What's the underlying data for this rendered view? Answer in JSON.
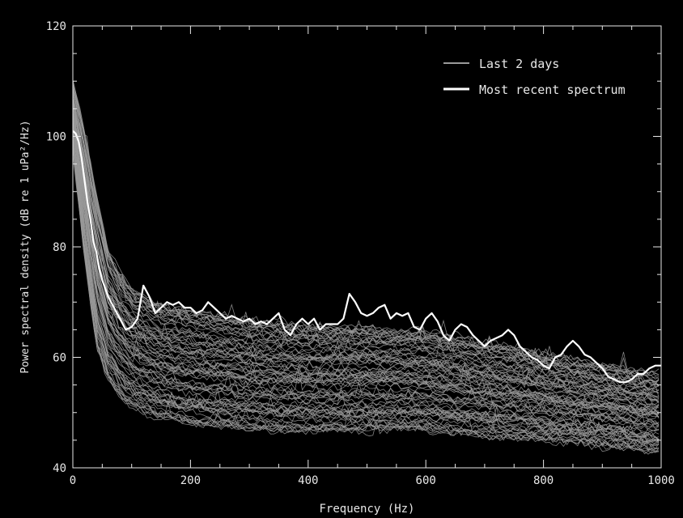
{
  "chart_data": {
    "type": "line",
    "xlabel": "Frequency (Hz)",
    "ylabel": "Power spectral density (dB re 1 uPa²/Hz)",
    "xlim": [
      0,
      1000
    ],
    "ylim": [
      40,
      120
    ],
    "x_ticks": [
      0,
      200,
      400,
      600,
      800,
      1000
    ],
    "y_ticks": [
      40,
      60,
      80,
      100,
      120
    ],
    "x_tick_labels": [
      "0",
      "200",
      "400",
      "600",
      "800",
      "1000"
    ],
    "y_tick_labels": [
      "40",
      "60",
      "80",
      "100",
      "120"
    ],
    "grid": false,
    "legend_position": "top-right",
    "background": "#000000",
    "axis_color": "#e8e8e8",
    "series": [
      {
        "name": "Last 2 days",
        "color": "#9a9a9a",
        "kind": "ensemble",
        "description_count": 80,
        "envelope_x": [
          0,
          20,
          40,
          60,
          80,
          100,
          150,
          200,
          300,
          400,
          500,
          600,
          700,
          800,
          900,
          1000
        ],
        "envelope_upper": [
          110,
          101,
          90,
          80,
          76,
          73,
          70,
          69,
          67,
          66,
          66,
          65,
          63,
          61,
          59,
          57
        ],
        "envelope_median": [
          104,
          90,
          76,
          68,
          65,
          63,
          62,
          61,
          60,
          59,
          59,
          58,
          57,
          56,
          54,
          52
        ],
        "envelope_lower": [
          98,
          78,
          62,
          56,
          53,
          51,
          49,
          48,
          47,
          47,
          47,
          47,
          46,
          45,
          44,
          43
        ]
      },
      {
        "name": "Most recent spectrum",
        "color": "#ffffff",
        "kind": "line",
        "x": [
          0,
          5,
          10,
          15,
          20,
          25,
          30,
          35,
          40,
          45,
          50,
          60,
          70,
          80,
          90,
          100,
          110,
          120,
          130,
          140,
          150,
          160,
          170,
          180,
          190,
          200,
          210,
          220,
          230,
          240,
          250,
          260,
          270,
          280,
          290,
          300,
          310,
          320,
          330,
          340,
          350,
          360,
          370,
          380,
          390,
          400,
          410,
          420,
          430,
          440,
          450,
          460,
          470,
          480,
          490,
          500,
          510,
          520,
          530,
          540,
          550,
          560,
          570,
          580,
          590,
          600,
          610,
          620,
          630,
          640,
          650,
          660,
          670,
          680,
          690,
          700,
          710,
          720,
          730,
          740,
          750,
          760,
          770,
          780,
          790,
          800,
          810,
          820,
          830,
          840,
          850,
          860,
          870,
          880,
          890,
          900,
          910,
          920,
          930,
          940,
          950,
          960,
          970,
          980,
          990,
          1000
        ],
        "y": [
          101,
          100.5,
          99,
          96,
          92,
          88,
          85,
          81,
          79,
          76,
          74,
          71,
          69,
          67,
          65,
          65.5,
          67,
          73,
          71,
          68,
          69,
          70,
          69.5,
          70,
          69,
          69,
          68,
          68.5,
          70,
          69,
          68,
          67,
          67.5,
          67,
          66.5,
          67,
          66,
          66.5,
          66,
          67,
          68,
          65,
          64,
          66,
          67,
          66,
          67,
          65,
          66,
          66,
          66,
          67,
          71.5,
          70,
          68,
          67.5,
          68,
          69,
          69.5,
          67,
          68,
          67.5,
          68,
          65.5,
          65,
          67,
          68,
          66.5,
          64,
          63,
          65,
          66,
          65.5,
          64,
          63,
          62,
          63,
          63.5,
          64,
          65,
          64,
          62,
          61,
          60,
          59.5,
          58.5,
          58,
          60,
          60.5,
          62,
          63,
          62,
          60.5,
          60,
          59,
          58,
          56.5,
          56,
          55.5,
          55.5,
          56,
          57,
          57,
          58,
          58.5,
          58.5
        ]
      }
    ]
  }
}
